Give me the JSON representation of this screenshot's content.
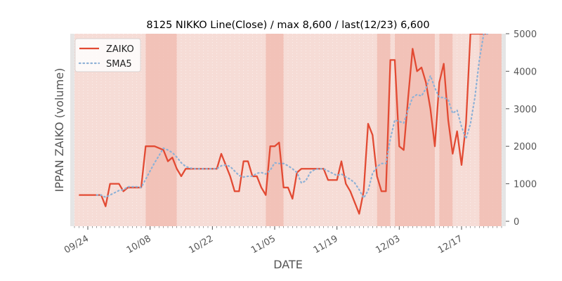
{
  "chart_data": {
    "type": "line",
    "title": "8125 NIKKO Line(Close) / max 8,600 / last(12/23) 6,600",
    "xlabel": "DATE",
    "ylabel": "IPPAN ZAIKO (volume)",
    "ylim": [
      0,
      5000
    ],
    "yticks": [
      0,
      1000,
      2000,
      3000,
      4000,
      5000
    ],
    "ytick_labels": [
      "0",
      "1000",
      "2000",
      "3000",
      "4000",
      "5000"
    ],
    "xticks": [
      {
        "date": "2019-09-24",
        "label": "09/24"
      },
      {
        "date": "2019-10-08",
        "label": "10/08"
      },
      {
        "date": "2019-10-22",
        "label": "10/22"
      },
      {
        "date": "2019-11-05",
        "label": "11/05"
      },
      {
        "date": "2019-11-19",
        "label": "11/19"
      },
      {
        "date": "2019-12-03",
        "label": "12/03"
      },
      {
        "date": "2019-12-17",
        "label": "12/17"
      }
    ],
    "xrange": [
      "2019-09-21",
      "2019-12-26"
    ],
    "grid": false,
    "legend": "top-left",
    "colors": {
      "zaiko": "#e24a33",
      "sma5": "#8eb1d6",
      "plot_bg": "#f6dcd6",
      "band": "#f0b9ae",
      "frame": "#e5e5e5"
    },
    "x": [
      "2019-09-22",
      "2019-09-23",
      "2019-09-24",
      "2019-09-25",
      "2019-09-26",
      "2019-09-27",
      "2019-09-28",
      "2019-09-29",
      "2019-09-30",
      "2019-10-01",
      "2019-10-02",
      "2019-10-03",
      "2019-10-04",
      "2019-10-05",
      "2019-10-06",
      "2019-10-07",
      "2019-10-08",
      "2019-10-09",
      "2019-10-10",
      "2019-10-11",
      "2019-10-12",
      "2019-10-13",
      "2019-10-14",
      "2019-10-15",
      "2019-10-16",
      "2019-10-17",
      "2019-10-18",
      "2019-10-19",
      "2019-10-20",
      "2019-10-21",
      "2019-10-22",
      "2019-10-23",
      "2019-10-24",
      "2019-10-25",
      "2019-10-26",
      "2019-10-27",
      "2019-10-28",
      "2019-10-29",
      "2019-10-30",
      "2019-10-31",
      "2019-11-01",
      "2019-11-02",
      "2019-11-03",
      "2019-11-04",
      "2019-11-05",
      "2019-11-06",
      "2019-11-07",
      "2019-11-08",
      "2019-11-09",
      "2019-11-10",
      "2019-11-11",
      "2019-11-12",
      "2019-11-13",
      "2019-11-14",
      "2019-11-15",
      "2019-11-16",
      "2019-11-17",
      "2019-11-18",
      "2019-11-19",
      "2019-11-20",
      "2019-11-21",
      "2019-11-22",
      "2019-11-23",
      "2019-11-24",
      "2019-11-25",
      "2019-11-26",
      "2019-11-27",
      "2019-11-28",
      "2019-11-29",
      "2019-11-30",
      "2019-12-01",
      "2019-12-02",
      "2019-12-03",
      "2019-12-04",
      "2019-12-05",
      "2019-12-06",
      "2019-12-07",
      "2019-12-08",
      "2019-12-09",
      "2019-12-10",
      "2019-12-11",
      "2019-12-12",
      "2019-12-13",
      "2019-12-14",
      "2019-12-15",
      "2019-12-16",
      "2019-12-17",
      "2019-12-18",
      "2019-12-19",
      "2019-12-20",
      "2019-12-21",
      "2019-12-22",
      "2019-12-23"
    ],
    "series": [
      {
        "name": "ZAIKO",
        "style": "solid",
        "values": [
          700,
          700,
          700,
          700,
          700,
          700,
          400,
          1000,
          1000,
          1000,
          800,
          900,
          900,
          900,
          900,
          2000,
          2000,
          2000,
          1950,
          1900,
          1600,
          1700,
          1400,
          1200,
          1400,
          1400,
          1400,
          1400,
          1400,
          1400,
          1400,
          1400,
          1800,
          1500,
          1200,
          800,
          800,
          1600,
          1600,
          1200,
          1200,
          900,
          700,
          2000,
          2000,
          2100,
          900,
          900,
          600,
          1300,
          1400,
          1400,
          1400,
          1400,
          1400,
          1400,
          1100,
          1100,
          1100,
          1600,
          1000,
          800,
          500,
          200,
          800,
          2600,
          2300,
          1200,
          800,
          800,
          4300,
          4300,
          2000,
          1900,
          3300,
          4600,
          4000,
          4100,
          3700,
          3000,
          2000,
          3700,
          4200,
          2700,
          1800,
          2400,
          1500,
          2600,
          5000,
          5000,
          5000,
          5000,
          5000
        ]
      },
      {
        "name": "SMA5",
        "style": "dotted",
        "values": [
          null,
          null,
          null,
          null,
          700,
          700,
          640,
          700,
          760,
          820,
          840,
          920,
          920,
          920,
          900,
          1120,
          1340,
          1560,
          1750,
          1950,
          1900,
          1830,
          1710,
          1560,
          1460,
          1420,
          1400,
          1400,
          1400,
          1400,
          1400,
          1400,
          1480,
          1500,
          1460,
          1340,
          1220,
          1180,
          1200,
          1200,
          1280,
          1300,
          1260,
          1360,
          1560,
          1540,
          1540,
          1480,
          1400,
          1300,
          1020,
          1080,
          1300,
          1380,
          1400,
          1400,
          1340,
          1280,
          1220,
          1260,
          1180,
          1120,
          1020,
          840,
          620,
          820,
          1280,
          1460,
          1540,
          1540,
          2200,
          2700,
          2660,
          2620,
          2980,
          3300,
          3380,
          3340,
          3540,
          3880,
          3560,
          3300,
          3300,
          3240,
          2880,
          2960,
          2520,
          2200,
          2600,
          3300,
          4300,
          5000,
          5000
        ]
      }
    ],
    "bands": [
      [
        "2019-10-07",
        "2019-10-14"
      ],
      [
        "2019-11-03",
        "2019-11-07"
      ],
      [
        "2019-11-28",
        "2019-12-01"
      ],
      [
        "2019-12-02",
        "2019-12-05"
      ],
      [
        "2019-12-05",
        "2019-12-11"
      ],
      [
        "2019-12-12",
        "2019-12-15"
      ],
      [
        "2019-12-21",
        "2019-12-26"
      ]
    ]
  }
}
